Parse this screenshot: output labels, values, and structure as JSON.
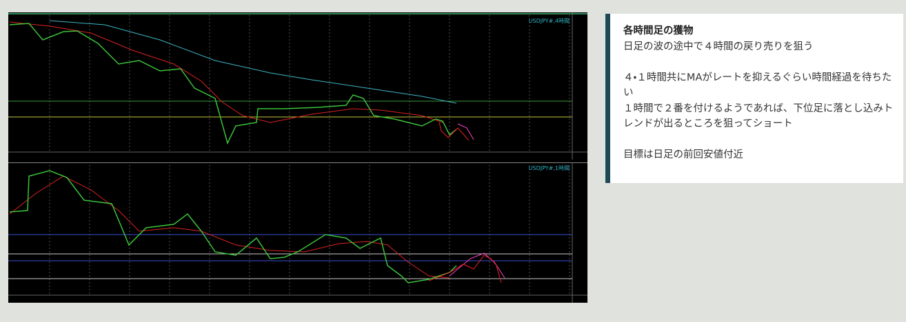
{
  "panels": [
    {
      "label": "USDJPY#,4時間"
    },
    {
      "label": "USDJPY#,1時間"
    }
  ],
  "note": {
    "title": "各時間足の獲物",
    "paragraphs": [
      "日足の波の途中で４時間の戻り売りを狙う",
      "４・１時間共にMAがレートを抑えるぐらい時間経過を待ちたい",
      "１時間で２番を付けるようであれば、下位足に落とし込みトレンドが出るところを狙ってショート",
      "目標は日足の前回安値付近"
    ]
  }
}
